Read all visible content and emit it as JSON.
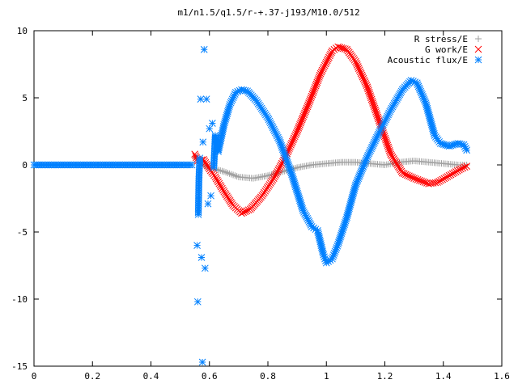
{
  "chart_data": {
    "type": "scatter",
    "title": "m1/n1.5/q1.5/r-+.37-j193/M10.0/512",
    "xlabel": "",
    "ylabel": "",
    "xlim": [
      0,
      1.6
    ],
    "ylim": [
      -15,
      10
    ],
    "x_ticks": [
      "0",
      "0.2",
      "0.4",
      "0.6",
      "0.8",
      "1",
      "1.2",
      "1.4",
      "1.6"
    ],
    "y_ticks": [
      "10",
      "5",
      "0",
      "-5",
      "-10",
      "-15"
    ],
    "x_tick_values": [
      0,
      0.2,
      0.4,
      0.6,
      0.8,
      1.0,
      1.2,
      1.4,
      1.6
    ],
    "y_tick_values": [
      10,
      5,
      0,
      -5,
      -10,
      -15
    ],
    "legend_position": "top-right",
    "grid": false,
    "series": [
      {
        "name": "R stress/E",
        "marker": "plus",
        "color": "#a0a0a0",
        "points": [
          [
            0.55,
            0.6
          ],
          [
            0.57,
            0.1
          ],
          [
            0.6,
            -0.2
          ],
          [
            0.65,
            -0.5
          ],
          [
            0.7,
            -0.9
          ],
          [
            0.75,
            -1.0
          ],
          [
            0.8,
            -0.8
          ],
          [
            0.85,
            -0.5
          ],
          [
            0.9,
            -0.2
          ],
          [
            0.95,
            0.0
          ],
          [
            1.0,
            0.1
          ],
          [
            1.05,
            0.2
          ],
          [
            1.1,
            0.2
          ],
          [
            1.15,
            0.1
          ],
          [
            1.2,
            0.0
          ],
          [
            1.25,
            0.2
          ],
          [
            1.3,
            0.3
          ],
          [
            1.35,
            0.2
          ],
          [
            1.4,
            0.1
          ],
          [
            1.45,
            0.0
          ],
          [
            1.48,
            0.0
          ]
        ]
      },
      {
        "name": "G work/E",
        "marker": "cross",
        "color": "#ff0000",
        "points": [
          [
            0.55,
            0.8
          ],
          [
            0.56,
            0.3
          ],
          [
            0.58,
            0.4
          ],
          [
            0.6,
            -0.3
          ],
          [
            0.62,
            -0.9
          ],
          [
            0.65,
            -2.0
          ],
          [
            0.68,
            -3.0
          ],
          [
            0.71,
            -3.6
          ],
          [
            0.74,
            -3.3
          ],
          [
            0.78,
            -2.3
          ],
          [
            0.82,
            -1.0
          ],
          [
            0.86,
            0.6
          ],
          [
            0.9,
            2.5
          ],
          [
            0.94,
            4.6
          ],
          [
            0.98,
            6.8
          ],
          [
            1.02,
            8.5
          ],
          [
            1.04,
            8.8
          ],
          [
            1.07,
            8.6
          ],
          [
            1.1,
            7.7
          ],
          [
            1.14,
            5.8
          ],
          [
            1.18,
            3.3
          ],
          [
            1.22,
            0.8
          ],
          [
            1.26,
            -0.6
          ],
          [
            1.3,
            -1.0
          ],
          [
            1.35,
            -1.4
          ],
          [
            1.38,
            -1.3
          ],
          [
            1.42,
            -0.8
          ],
          [
            1.46,
            -0.3
          ],
          [
            1.48,
            -0.1
          ]
        ]
      },
      {
        "name": "Acoustic flux/E",
        "marker": "star",
        "color": "#0080ff",
        "points": [
          [
            0.0,
            0.0
          ],
          [
            0.05,
            0.0
          ],
          [
            0.1,
            0.0
          ],
          [
            0.15,
            0.0
          ],
          [
            0.2,
            0.0
          ],
          [
            0.25,
            0.0
          ],
          [
            0.3,
            0.0
          ],
          [
            0.35,
            0.0
          ],
          [
            0.4,
            0.0
          ],
          [
            0.45,
            0.0
          ],
          [
            0.5,
            0.0
          ],
          [
            0.54,
            0.0
          ],
          [
            0.558,
            -6.0
          ],
          [
            0.56,
            -10.2
          ],
          [
            0.562,
            -3.7
          ],
          [
            0.564,
            -1.1
          ],
          [
            0.567,
            0.5
          ],
          [
            0.57,
            4.9
          ],
          [
            0.573,
            -6.9
          ],
          [
            0.576,
            -14.7
          ],
          [
            0.578,
            1.7
          ],
          [
            0.582,
            8.6
          ],
          [
            0.585,
            -7.7
          ],
          [
            0.59,
            4.9
          ],
          [
            0.595,
            -2.9
          ],
          [
            0.6,
            2.7
          ],
          [
            0.605,
            -2.3
          ],
          [
            0.61,
            3.1
          ],
          [
            0.615,
            -0.2
          ],
          [
            0.62,
            2.2
          ],
          [
            0.63,
            1.0
          ],
          [
            0.65,
            3.0
          ],
          [
            0.67,
            4.5
          ],
          [
            0.69,
            5.4
          ],
          [
            0.71,
            5.6
          ],
          [
            0.73,
            5.5
          ],
          [
            0.76,
            4.8
          ],
          [
            0.8,
            3.5
          ],
          [
            0.84,
            1.8
          ],
          [
            0.88,
            -0.6
          ],
          [
            0.92,
            -3.4
          ],
          [
            0.95,
            -4.6
          ],
          [
            0.97,
            -4.9
          ],
          [
            0.99,
            -6.7
          ],
          [
            1.0,
            -7.3
          ],
          [
            1.02,
            -7.0
          ],
          [
            1.04,
            -5.9
          ],
          [
            1.07,
            -3.9
          ],
          [
            1.1,
            -1.5
          ],
          [
            1.14,
            0.6
          ],
          [
            1.18,
            2.4
          ],
          [
            1.22,
            4.1
          ],
          [
            1.26,
            5.6
          ],
          [
            1.29,
            6.3
          ],
          [
            1.31,
            6.1
          ],
          [
            1.34,
            4.6
          ],
          [
            1.37,
            2.2
          ],
          [
            1.39,
            1.6
          ],
          [
            1.42,
            1.4
          ],
          [
            1.45,
            1.6
          ],
          [
            1.47,
            1.5
          ],
          [
            1.48,
            1.1
          ]
        ]
      }
    ]
  }
}
